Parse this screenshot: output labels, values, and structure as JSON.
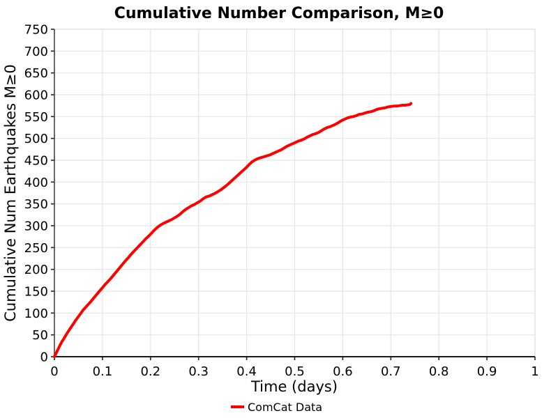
{
  "title": "Cumulative Number Comparison, M≥0",
  "legend": {
    "entries": [
      {
        "label": "ComCat Data",
        "color": "#ff0000"
      }
    ]
  },
  "colors": {
    "line": "#ff0000",
    "grid": "#e5e5e5",
    "spine_left": "#444444",
    "spine_bottom": "#1a1a1a",
    "border_top": "#e0e0e0",
    "border_right": "#e0e0e0",
    "tick": "#222222",
    "text": "#000000",
    "background": "#ffffff"
  },
  "chart_data": {
    "type": "line",
    "title": "Cumulative Number Comparison, M≥0",
    "xlabel": "Time (days)",
    "ylabel": "Cumulative Num Earthquakes M≥0",
    "xlim": [
      0,
      1
    ],
    "ylim": [
      0,
      750
    ],
    "grid": true,
    "legend_position": "bottom-center",
    "xticks": [
      0,
      0.1,
      0.2,
      0.3,
      0.4,
      0.5,
      0.6,
      0.7,
      0.8,
      0.9,
      1
    ],
    "xtick_labels": [
      "0",
      "0.1",
      "0.2",
      "0.3",
      "0.4",
      "0.5",
      "0.6",
      "0.7",
      "0.8",
      "0.9",
      "1"
    ],
    "yticks": [
      0,
      50,
      100,
      150,
      200,
      250,
      300,
      350,
      400,
      450,
      500,
      550,
      600,
      650,
      700,
      750
    ],
    "ytick_labels": [
      "0",
      "50",
      "100",
      "150",
      "200",
      "250",
      "300",
      "350",
      "400",
      "450",
      "500",
      "550",
      "600",
      "650",
      "700",
      "750"
    ],
    "series": [
      {
        "name": "ComCat Data",
        "color": "#ff0000",
        "line_width": 4,
        "points": [
          [
            0.0,
            0
          ],
          [
            0.004,
            9
          ],
          [
            0.008,
            18
          ],
          [
            0.012,
            27
          ],
          [
            0.016,
            35
          ],
          [
            0.02,
            42
          ],
          [
            0.026,
            53
          ],
          [
            0.032,
            63
          ],
          [
            0.038,
            73
          ],
          [
            0.044,
            83
          ],
          [
            0.05,
            92
          ],
          [
            0.056,
            101
          ],
          [
            0.06,
            107
          ],
          [
            0.064,
            112
          ],
          [
            0.068,
            117
          ],
          [
            0.074,
            124
          ],
          [
            0.08,
            132
          ],
          [
            0.086,
            140
          ],
          [
            0.092,
            148
          ],
          [
            0.1,
            158
          ],
          [
            0.106,
            166
          ],
          [
            0.112,
            173
          ],
          [
            0.118,
            180
          ],
          [
            0.124,
            188
          ],
          [
            0.13,
            196
          ],
          [
            0.136,
            204
          ],
          [
            0.142,
            212
          ],
          [
            0.148,
            220
          ],
          [
            0.154,
            227
          ],
          [
            0.16,
            235
          ],
          [
            0.166,
            242
          ],
          [
            0.172,
            249
          ],
          [
            0.178,
            256
          ],
          [
            0.184,
            263
          ],
          [
            0.19,
            270
          ],
          [
            0.196,
            276
          ],
          [
            0.202,
            283
          ],
          [
            0.208,
            290
          ],
          [
            0.214,
            296
          ],
          [
            0.22,
            301
          ],
          [
            0.226,
            305
          ],
          [
            0.232,
            308
          ],
          [
            0.238,
            311
          ],
          [
            0.244,
            314
          ],
          [
            0.25,
            318
          ],
          [
            0.256,
            322
          ],
          [
            0.262,
            327
          ],
          [
            0.268,
            333
          ],
          [
            0.274,
            338
          ],
          [
            0.28,
            342
          ],
          [
            0.286,
            346
          ],
          [
            0.292,
            349
          ],
          [
            0.298,
            353
          ],
          [
            0.304,
            357
          ],
          [
            0.31,
            362
          ],
          [
            0.316,
            366
          ],
          [
            0.322,
            368
          ],
          [
            0.328,
            371
          ],
          [
            0.334,
            374
          ],
          [
            0.34,
            378
          ],
          [
            0.346,
            382
          ],
          [
            0.352,
            387
          ],
          [
            0.358,
            392
          ],
          [
            0.364,
            398
          ],
          [
            0.37,
            404
          ],
          [
            0.376,
            410
          ],
          [
            0.382,
            416
          ],
          [
            0.388,
            422
          ],
          [
            0.394,
            428
          ],
          [
            0.4,
            434
          ],
          [
            0.406,
            441
          ],
          [
            0.412,
            447
          ],
          [
            0.418,
            451
          ],
          [
            0.424,
            454
          ],
          [
            0.43,
            456
          ],
          [
            0.436,
            458
          ],
          [
            0.442,
            460
          ],
          [
            0.448,
            462
          ],
          [
            0.454,
            465
          ],
          [
            0.46,
            468
          ],
          [
            0.466,
            471
          ],
          [
            0.472,
            474
          ],
          [
            0.478,
            478
          ],
          [
            0.484,
            482
          ],
          [
            0.49,
            485
          ],
          [
            0.496,
            488
          ],
          [
            0.502,
            491
          ],
          [
            0.508,
            494
          ],
          [
            0.514,
            496
          ],
          [
            0.52,
            499
          ],
          [
            0.526,
            503
          ],
          [
            0.532,
            506
          ],
          [
            0.538,
            509
          ],
          [
            0.544,
            511
          ],
          [
            0.55,
            514
          ],
          [
            0.556,
            518
          ],
          [
            0.562,
            522
          ],
          [
            0.568,
            525
          ],
          [
            0.574,
            527
          ],
          [
            0.58,
            530
          ],
          [
            0.586,
            533
          ],
          [
            0.592,
            537
          ],
          [
            0.598,
            541
          ],
          [
            0.604,
            544
          ],
          [
            0.61,
            547
          ],
          [
            0.616,
            549
          ],
          [
            0.622,
            550
          ],
          [
            0.628,
            552
          ],
          [
            0.634,
            555
          ],
          [
            0.64,
            556
          ],
          [
            0.646,
            558
          ],
          [
            0.652,
            560
          ],
          [
            0.658,
            561
          ],
          [
            0.664,
            563
          ],
          [
            0.67,
            566
          ],
          [
            0.676,
            568
          ],
          [
            0.682,
            569
          ],
          [
            0.688,
            570
          ],
          [
            0.694,
            572
          ],
          [
            0.7,
            573
          ],
          [
            0.706,
            574
          ],
          [
            0.712,
            574
          ],
          [
            0.718,
            575
          ],
          [
            0.724,
            576
          ],
          [
            0.73,
            576
          ],
          [
            0.736,
            577
          ],
          [
            0.74,
            578
          ],
          [
            0.742,
            580
          ]
        ]
      }
    ]
  }
}
